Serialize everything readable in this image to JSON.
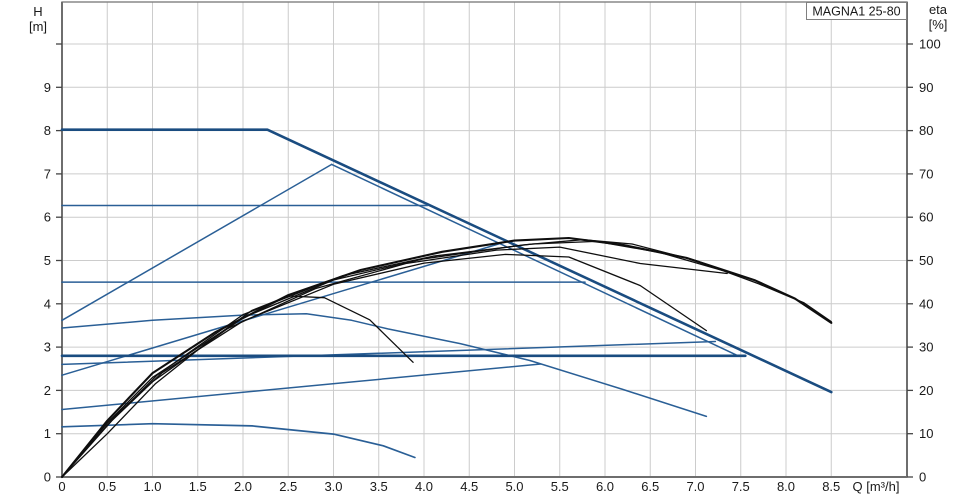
{
  "title_box": {
    "label": "MAGNA1 25-80"
  },
  "colors": {
    "background": "#ffffff",
    "grid": "#cccccc",
    "frame": "#808080",
    "axis": "#6e6e6e",
    "tick": "#444444",
    "text": "#1a1a1a",
    "blue_thin": "#2a5f96",
    "blue_thick": "#1a4c80",
    "black_curve": "#0f0f0f"
  },
  "chart_data": {
    "type": "line",
    "title": "MAGNA1 25-80",
    "xlabel": "Q [m³/h]",
    "ylabel_left_lines": [
      "H",
      "[m]"
    ],
    "ylabel_right_lines": [
      "eta",
      "[%]"
    ],
    "x_range": [
      0,
      9.34
    ],
    "y_left_range": [
      0,
      10.97
    ],
    "y_right_range": [
      0,
      109.7
    ],
    "grid": "on",
    "x_gridlines": [
      0.5,
      1.0,
      1.5,
      2.0,
      2.5,
      3.0,
      3.5,
      4.0,
      4.5,
      5.0,
      5.5,
      6.0,
      6.5,
      7.0,
      7.5,
      8.0,
      8.5
    ],
    "h_gridlines": [
      1,
      2,
      3,
      4,
      5,
      6,
      7,
      8,
      9,
      10
    ],
    "x_ticks": {
      "values": [
        0,
        0.5,
        1.0,
        1.5,
        2.0,
        2.5,
        3.0,
        3.5,
        4.0,
        4.5,
        5.0,
        5.5,
        6.0,
        6.5,
        7.0,
        7.5,
        8.0,
        8.5
      ],
      "labels": [
        "0",
        "0.5",
        "1.0",
        "1.5",
        "2.0",
        "2.5",
        "3.0",
        "3.5",
        "4.0",
        "4.5",
        "5.0",
        "5.5",
        "6.0",
        "6.5",
        "7.0",
        "7.5",
        "8.0",
        "8.5"
      ]
    },
    "left_ticks": {
      "values": [
        0,
        1,
        2,
        3,
        4,
        5,
        6,
        7,
        8,
        9,
        10
      ],
      "labels": [
        "0",
        "1",
        "2",
        "3",
        "4",
        "5",
        "6",
        "7",
        "8",
        "9",
        ""
      ]
    },
    "right_ticks": {
      "values": [
        0,
        10,
        20,
        30,
        40,
        50,
        60,
        70,
        80,
        90,
        100
      ],
      "labels": [
        "0",
        "10",
        "20",
        "30",
        "40",
        "50",
        "60",
        "70",
        "80",
        "90",
        "100"
      ]
    },
    "series": [
      {
        "name": "max-speed-curve",
        "axis": "H",
        "color_role": "blue_thick",
        "width": 2.6,
        "points": [
          [
            0,
            8.02
          ],
          [
            2.27,
            8.02
          ],
          [
            8.5,
            1.96
          ]
        ]
      },
      {
        "name": "prop-pressure-max-rise",
        "axis": "H",
        "color_role": "blue_thin",
        "width": 1.5,
        "points": [
          [
            0,
            3.62
          ],
          [
            2.98,
            7.22
          ]
        ]
      },
      {
        "name": "prop-pressure-max-descent",
        "axis": "H",
        "color_role": "blue_thin",
        "width": 1.5,
        "points": [
          [
            2.98,
            7.22
          ],
          [
            7.45,
            2.82
          ]
        ]
      },
      {
        "name": "const-pressure-6.3",
        "axis": "H",
        "color_role": "blue_thin",
        "width": 1.5,
        "points": [
          [
            0,
            6.27
          ],
          [
            4.04,
            6.27
          ]
        ]
      },
      {
        "name": "const-pressure-4.5",
        "axis": "H",
        "color_role": "blue_thin",
        "width": 1.5,
        "points": [
          [
            0,
            4.5
          ],
          [
            5.78,
            4.5
          ]
        ]
      },
      {
        "name": "pump-curve-reduced-speed",
        "axis": "H",
        "color_role": "blue_thin",
        "width": 1.5,
        "points": [
          [
            0,
            3.44
          ],
          [
            1.0,
            3.62
          ],
          [
            2.0,
            3.74
          ],
          [
            2.7,
            3.77
          ],
          [
            3.2,
            3.62
          ],
          [
            3.6,
            3.42
          ],
          [
            4.4,
            3.08
          ],
          [
            5.17,
            2.69
          ],
          [
            6.2,
            2.02
          ],
          [
            7.12,
            1.4
          ]
        ]
      },
      {
        "name": "prop-pressure-rise-2",
        "axis": "H",
        "color_role": "blue_thin",
        "width": 1.5,
        "points": [
          [
            0,
            2.35
          ],
          [
            4.9,
            5.43
          ]
        ]
      },
      {
        "name": "prop-pressure-rise-3",
        "axis": "H",
        "color_role": "blue_thin",
        "width": 1.5,
        "points": [
          [
            0,
            2.6
          ],
          [
            7.22,
            3.13
          ]
        ]
      },
      {
        "name": "const-pressure-2.8-selected",
        "axis": "H",
        "color_role": "blue_thick",
        "width": 2.6,
        "points": [
          [
            0,
            2.8
          ],
          [
            7.55,
            2.8
          ]
        ]
      },
      {
        "name": "prop-pressure-rise-1",
        "axis": "H",
        "color_role": "blue_thin",
        "width": 1.5,
        "points": [
          [
            0,
            1.56
          ],
          [
            5.29,
            2.61
          ]
        ]
      },
      {
        "name": "min-speed-curve",
        "axis": "H",
        "color_role": "blue_thin",
        "width": 1.7,
        "points": [
          [
            0,
            1.16
          ],
          [
            1.0,
            1.23
          ],
          [
            2.1,
            1.18
          ],
          [
            3.0,
            0.99
          ],
          [
            3.55,
            0.72
          ],
          [
            3.9,
            0.45
          ]
        ]
      },
      {
        "name": "eta-curve-1",
        "axis": "eta",
        "color_role": "black_curve",
        "width": 2.1,
        "points": [
          [
            0,
            0
          ],
          [
            0.5,
            13
          ],
          [
            1,
            24
          ],
          [
            1.7,
            33.5
          ],
          [
            2.5,
            42
          ],
          [
            3.3,
            47.8
          ],
          [
            4.2,
            52
          ],
          [
            5.0,
            54.6
          ],
          [
            5.6,
            55.2
          ],
          [
            6.2,
            53.6
          ],
          [
            6.9,
            50.6
          ],
          [
            7.66,
            45.4
          ],
          [
            8.1,
            41.2
          ],
          [
            8.5,
            35.6
          ]
        ]
      },
      {
        "name": "eta-curve-2",
        "axis": "eta",
        "color_role": "black_curve",
        "width": 1.3,
        "points": [
          [
            0,
            0
          ],
          [
            0.5,
            12.5
          ],
          [
            1,
            23
          ],
          [
            1.8,
            34
          ],
          [
            2.8,
            43.5
          ],
          [
            3.8,
            49.3
          ],
          [
            4.8,
            52.4
          ],
          [
            5.5,
            53.1
          ],
          [
            6.39,
            49.3
          ],
          [
            7.35,
            47.0
          ]
        ]
      },
      {
        "name": "eta-curve-3",
        "axis": "eta",
        "color_role": "black_curve",
        "width": 1.3,
        "points": [
          [
            0,
            0
          ],
          [
            0.55,
            13
          ],
          [
            1.1,
            24
          ],
          [
            2,
            36
          ],
          [
            3,
            44.5
          ],
          [
            4,
            49.4
          ],
          [
            4.9,
            51.4
          ],
          [
            5.6,
            50.8
          ],
          [
            6.39,
            44.2
          ],
          [
            7.12,
            33.8
          ]
        ]
      },
      {
        "name": "eta-curve-4",
        "axis": "eta",
        "color_role": "black_curve",
        "width": 1.3,
        "points": [
          [
            0,
            0
          ],
          [
            0.45,
            11.5
          ],
          [
            1,
            22
          ],
          [
            2,
            36.8
          ],
          [
            3,
            45.5
          ],
          [
            4,
            50.4
          ],
          [
            5.1,
            53.6
          ],
          [
            5.75,
            54.8
          ],
          [
            6.3,
            53.8
          ],
          [
            7.0,
            50.0
          ],
          [
            7.7,
            44.6
          ],
          [
            8.2,
            40.2
          ],
          [
            8.5,
            35.9
          ]
        ]
      },
      {
        "name": "eta-curve-5",
        "axis": "eta",
        "color_role": "black_curve",
        "width": 1.3,
        "points": [
          [
            0,
            0
          ],
          [
            0.5,
            12
          ],
          [
            1.05,
            23.5
          ],
          [
            2,
            37.5
          ],
          [
            3.1,
            46.5
          ],
          [
            4.1,
            51
          ],
          [
            5.2,
            53.8
          ],
          [
            5.9,
            54.4
          ],
          [
            6.6,
            51.9
          ],
          [
            7.3,
            47.7
          ]
        ]
      },
      {
        "name": "eta-curve-min",
        "axis": "eta",
        "color_role": "black_curve",
        "width": 1.3,
        "points": [
          [
            0,
            0
          ],
          [
            0.5,
            10
          ],
          [
            1.03,
            21.5
          ],
          [
            1.6,
            31
          ],
          [
            2.1,
            38.5
          ],
          [
            2.5,
            41.8
          ],
          [
            2.9,
            41.4
          ],
          [
            3.4,
            36.3
          ],
          [
            3.88,
            26.5
          ]
        ]
      }
    ]
  }
}
